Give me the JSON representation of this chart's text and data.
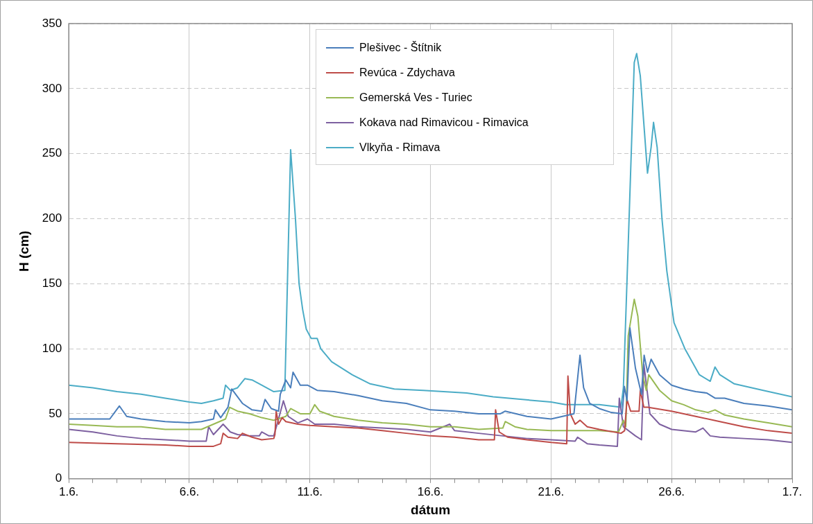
{
  "chart_data": {
    "type": "line",
    "xlabel": "dátum",
    "ylabel": "H (cm)",
    "xlim": [
      "--06-01",
      "--07-01"
    ],
    "ylim": [
      0,
      350
    ],
    "xticks": [
      {
        "value": "--06-01",
        "label": "1.6."
      },
      {
        "value": "--06-02",
        "label": null
      },
      {
        "value": "--06-03",
        "label": null
      },
      {
        "value": "--06-04",
        "label": null
      },
      {
        "value": "--06-05",
        "label": null
      },
      {
        "value": "--06-06",
        "label": "6.6."
      },
      {
        "value": "--06-07",
        "label": null
      },
      {
        "value": "--06-08",
        "label": null
      },
      {
        "value": "--06-09",
        "label": null
      },
      {
        "value": "--06-10",
        "label": null
      },
      {
        "value": "--06-11",
        "label": "11.6."
      },
      {
        "value": "--06-12",
        "label": null
      },
      {
        "value": "--06-13",
        "label": null
      },
      {
        "value": "--06-14",
        "label": null
      },
      {
        "value": "--06-15",
        "label": null
      },
      {
        "value": "--06-16",
        "label": "16.6."
      },
      {
        "value": "--06-17",
        "label": null
      },
      {
        "value": "--06-18",
        "label": null
      },
      {
        "value": "--06-19",
        "label": null
      },
      {
        "value": "--06-20",
        "label": null
      },
      {
        "value": "--06-21",
        "label": "21.6."
      },
      {
        "value": "--06-22",
        "label": null
      },
      {
        "value": "--06-23",
        "label": null
      },
      {
        "value": "--06-24",
        "label": null
      },
      {
        "value": "--06-25",
        "label": null
      },
      {
        "value": "--06-26",
        "label": "26.6."
      },
      {
        "value": "--06-27",
        "label": null
      },
      {
        "value": "--06-28",
        "label": null
      },
      {
        "value": "--06-29",
        "label": null
      },
      {
        "value": "--06-30",
        "label": null
      },
      {
        "value": "--07-01",
        "label": "1.7."
      }
    ],
    "yticks": [
      0,
      50,
      100,
      150,
      200,
      250,
      300,
      350
    ],
    "grid": true,
    "legend": "top",
    "series": [
      {
        "name": "Plešivec - Štítnik",
        "color": "#4a7ebb",
        "x": [
          "--06-01",
          "--06-02T16:48",
          "--06-03T02:24",
          "--06-03T09:36",
          "--06-04",
          "--06-05",
          "--06-06",
          "--06-06T12:00",
          "--06-07",
          "--06-07T01:55",
          "--06-07T07:12",
          "--06-07T14:24",
          "--06-07T18:14",
          "--06-08T04:48",
          "--06-08T14:24",
          "--06-09",
          "--06-09T03:22",
          "--06-09T09:36",
          "--06-09T16:48",
          "--06-09T18:29",
          "--06-10",
          "--06-10T04:48",
          "--06-10T07:12",
          "--06-10T14:24",
          "--06-10T21:36",
          "--06-11T07:12",
          "--06-12",
          "--06-13",
          "--06-14",
          "--06-15",
          "--06-16",
          "--06-17",
          "--06-18",
          "--06-18T21:36",
          "--06-19T02:24",
          "--06-20",
          "--06-21",
          "--06-21T22:48",
          "--06-22T04:48",
          "--06-22T08:24",
          "--06-22T14:24",
          "--06-23",
          "--06-23T12:00",
          "--06-23T22:48",
          "--06-24T00:58",
          "--06-24T03:36",
          "--06-24T06:29",
          "--06-24T12:00",
          "--06-24T18:00",
          "--06-24T20:38",
          "--06-25",
          "--06-25T03:36",
          "--06-25T12:00",
          "--06-26",
          "--06-26T12:00",
          "--06-27",
          "--06-27T10:48",
          "--06-27T19:12",
          "--06-28T04:48",
          "--06-29",
          "--06-30",
          "--07-01"
        ],
        "values": [
          46,
          46,
          56,
          48,
          46,
          44,
          43,
          44,
          46,
          53,
          47,
          55,
          69,
          58,
          53,
          52,
          61,
          54,
          52,
          65,
          76,
          70,
          82,
          72,
          72,
          68,
          67,
          64,
          60,
          58,
          53,
          52,
          50,
          50,
          52,
          48,
          46,
          50,
          95,
          70,
          58,
          54,
          51,
          50,
          71,
          60,
          116,
          85,
          65,
          95,
          82,
          92,
          80,
          72,
          69,
          67,
          66,
          62,
          62,
          58,
          56,
          53
        ]
      },
      {
        "name": "Revúca - Zdychava",
        "color": "#be4b48",
        "x": [
          "--06-01",
          "--06-03",
          "--06-05",
          "--06-06",
          "--06-07",
          "--06-07T07:12",
          "--06-07T09:36",
          "--06-07T14:24",
          "--06-08",
          "--06-08T04:48",
          "--06-08T14:24",
          "--06-09",
          "--06-09T12:00",
          "--06-09T13:12",
          "--06-09T14:24",
          "--06-09T16:48",
          "--06-09T20:24",
          "--06-10",
          "--06-10T12:00",
          "--06-11",
          "--06-12",
          "--06-13",
          "--06-14",
          "--06-15",
          "--06-16",
          "--06-17",
          "--06-18",
          "--06-18T15:36",
          "--06-18T16:48",
          "--06-18T20:24",
          "--06-19T04:48",
          "--06-20",
          "--06-21",
          "--06-21T15:36",
          "--06-21T16:48",
          "--06-21T19:12",
          "--06-22",
          "--06-22T04:48",
          "--06-22T12:00",
          "--06-23",
          "--06-23T21:36",
          "--06-24T01:12",
          "--06-24T03:36",
          "--06-24T07:12",
          "--06-24T15:36",
          "--06-24T16:48",
          "--06-24T20:24",
          "--06-25",
          "--06-26",
          "--06-27",
          "--06-28",
          "--06-29",
          "--06-30",
          "--07-01"
        ],
        "values": [
          28,
          27,
          26,
          25,
          25,
          27,
          35,
          32,
          31,
          35,
          32,
          30,
          31,
          34,
          52,
          42,
          47,
          44,
          42,
          41,
          40,
          39,
          37,
          35,
          33,
          32,
          30,
          30,
          53,
          36,
          32,
          30,
          28,
          27,
          79,
          50,
          42,
          45,
          40,
          38,
          35,
          37,
          61,
          52,
          52,
          68,
          55,
          55,
          52,
          48,
          44,
          40,
          37,
          35
        ]
      },
      {
        "name": "Gemerská Ves - Turiec",
        "color": "#98b954",
        "x": [
          "--06-01",
          "--06-02",
          "--06-03",
          "--06-04",
          "--06-05",
          "--06-06",
          "--06-06T12:00",
          "--06-07",
          "--06-07T12:00",
          "--06-07T16:05",
          "--06-08",
          "--06-08T12:00",
          "--06-09",
          "--06-09T12:00",
          "--06-10",
          "--06-10T04:48",
          "--06-10T14:24",
          "--06-11",
          "--06-11T04:48",
          "--06-11T09:36",
          "--06-12",
          "--06-13",
          "--06-14",
          "--06-15",
          "--06-16",
          "--06-17",
          "--06-18",
          "--06-19",
          "--06-19T02:24",
          "--06-19T12:00",
          "--06-20",
          "--06-21",
          "--06-22",
          "--06-23",
          "--06-23T19:12",
          "--06-24",
          "--06-24T02:24",
          "--06-24T04:48",
          "--06-24T10:48",
          "--06-24T14:24",
          "--06-24T19:12",
          "--06-24T22:48",
          "--06-25T01:12",
          "--06-25T12:00",
          "--06-26",
          "--06-26T12:00",
          "--06-27",
          "--06-27T12:00",
          "--06-27T19:12",
          "--06-28T04:48",
          "--06-29",
          "--06-30",
          "--07-01"
        ],
        "values": [
          42,
          41,
          40,
          40,
          38,
          38,
          38,
          42,
          46,
          55,
          52,
          50,
          47,
          45,
          48,
          54,
          50,
          50,
          57,
          52,
          48,
          45,
          43,
          42,
          40,
          40,
          38,
          39,
          44,
          40,
          38,
          37,
          37,
          37,
          36,
          45,
          40,
          110,
          138,
          125,
          80,
          68,
          80,
          68,
          60,
          57,
          53,
          51,
          53,
          49,
          46,
          43,
          40
        ]
      },
      {
        "name": "Kokava nad Rimavicou - Rimavica",
        "color": "#7d60a0",
        "x": [
          "--06-01",
          "--06-02",
          "--06-03",
          "--06-04",
          "--06-05",
          "--06-06",
          "--06-06T16:48",
          "--06-06T19:12",
          "--06-07",
          "--06-07T09:36",
          "--06-07T16:48",
          "--06-08",
          "--06-08T12:00",
          "--06-08T21:36",
          "--06-09",
          "--06-09T07:12",
          "--06-09T12:00",
          "--06-09T16:05",
          "--06-09T21:36",
          "--06-10T02:24",
          "--06-10T12:00",
          "--06-10T21:36",
          "--06-11T04:48",
          "--06-12",
          "--06-13",
          "--06-14",
          "--06-15",
          "--06-16",
          "--06-16T19:12",
          "--06-17",
          "--06-18",
          "--06-19",
          "--06-20",
          "--06-21",
          "--06-22",
          "--06-22T02:24",
          "--06-22T12:00",
          "--06-23",
          "--06-23T18:00",
          "--06-23T19:55",
          "--06-24",
          "--06-24T12:00",
          "--06-24T18:00",
          "--06-24T20:24",
          "--06-25T02:24",
          "--06-25T12:00",
          "--06-26",
          "--06-27",
          "--06-27T07:12",
          "--06-27T14:24",
          "--06-28",
          "--06-29",
          "--06-30",
          "--07-01"
        ],
        "values": [
          38,
          36,
          33,
          31,
          30,
          29,
          29,
          40,
          34,
          42,
          36,
          34,
          33,
          33,
          36,
          33,
          33,
          44,
          60,
          48,
          43,
          46,
          42,
          42,
          40,
          39,
          38,
          36,
          42,
          37,
          35,
          33,
          31,
          30,
          29,
          32,
          27,
          26,
          25,
          62,
          40,
          33,
          30,
          88,
          50,
          42,
          38,
          36,
          39,
          33,
          32,
          31,
          30,
          28
        ]
      },
      {
        "name": "Vlkyňa - Rimava",
        "color": "#4bacc6",
        "x": [
          "--06-01",
          "--06-02",
          "--06-03",
          "--06-04",
          "--06-05",
          "--06-06",
          "--06-06T12:00",
          "--06-07",
          "--06-07T09:36",
          "--06-07T12:00",
          "--06-07T16:48",
          "--06-08",
          "--06-08T07:12",
          "--06-08T14:24",
          "--06-09",
          "--06-09T12:00",
          "--06-09T23:02",
          "--06-10T04:48",
          "--06-10T09:36",
          "--06-10T13:12",
          "--06-10T16:48",
          "--06-10T20:24",
          "--06-11T01:12",
          "--06-11T07:12",
          "--06-11T10:48",
          "--06-11T21:36",
          "--06-12T18:00",
          "--06-13T12:00",
          "--06-14T12:00",
          "--06-15T16:48",
          "--06-17T12:00",
          "--06-18T14:24",
          "--06-21",
          "--06-21T14:24",
          "--06-23",
          "--06-23T21:36",
          "--06-24",
          "--06-24T04:48",
          "--06-24T10:48",
          "--06-24T13:12",
          "--06-24T16:48",
          "--06-24T21:36",
          "--06-25",
          "--06-25T03:36",
          "--06-25T06:00",
          "--06-25T09:36",
          "--06-25T14:24",
          "--06-25T19:12",
          "--06-26T02:24",
          "--06-26T13:12",
          "--06-27T03:36",
          "--06-27T14:24",
          "--06-27T19:12",
          "--06-28",
          "--06-28T14:24",
          "--06-29T19:12",
          "--07-01"
        ],
        "values": [
          72,
          70,
          67,
          65,
          62,
          59,
          58,
          60,
          62,
          72,
          68,
          70,
          77,
          76,
          72,
          67,
          68,
          253,
          200,
          150,
          130,
          115,
          108,
          108,
          100,
          90,
          80,
          73,
          69,
          68,
          66,
          63,
          59,
          57,
          57,
          55,
          70,
          180,
          320,
          327,
          310,
          260,
          235,
          255,
          274,
          255,
          200,
          160,
          120,
          100,
          80,
          75,
          86,
          80,
          73,
          68,
          63
        ]
      }
    ]
  }
}
